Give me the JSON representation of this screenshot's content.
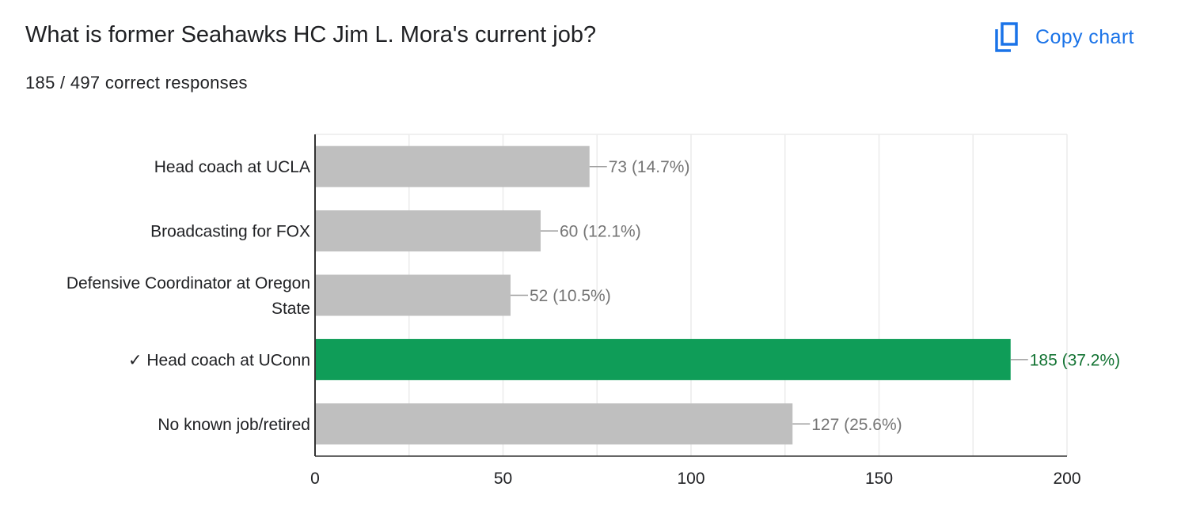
{
  "header": {
    "question": "What is former Seahawks HC Jim L. Mora's current job?",
    "score_summary": "185 / 497 correct responses",
    "copy_chart_label": "Copy chart",
    "copy_icon": "copy-icon"
  },
  "colors": {
    "bar_default": "#bfbfbf",
    "bar_correct": "#0f9d58",
    "label_default": "#757575",
    "label_correct": "#137333",
    "accent": "#1a73e8"
  },
  "chart_data": {
    "type": "bar",
    "orientation": "horizontal",
    "categories": [
      [
        "Head coach at UCLA"
      ],
      [
        "Broadcasting for FOX"
      ],
      [
        "Defensive Coordinator at Oregon",
        "State"
      ],
      [
        "✓ Head coach at UConn"
      ],
      [
        "No known job/retired"
      ]
    ],
    "values": [
      73,
      60,
      52,
      185,
      127
    ],
    "value_labels": [
      "73 (14.7%)",
      "60 (12.1%)",
      "52 (10.5%)",
      "185 (37.2%)",
      "127 (25.6%)"
    ],
    "correct": [
      false,
      false,
      false,
      true,
      false
    ],
    "xlim": [
      0,
      200
    ],
    "xticks": [
      0,
      50,
      100,
      150,
      200
    ],
    "grid": true
  }
}
